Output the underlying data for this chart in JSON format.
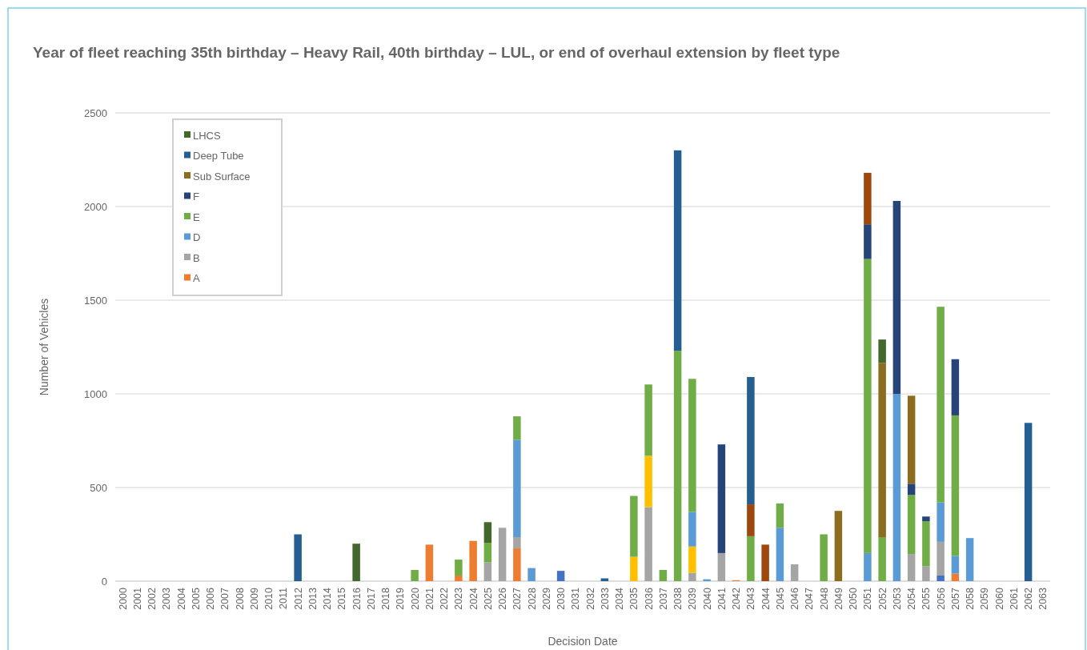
{
  "chart_data": {
    "type": "bar",
    "stacked": true,
    "title": "Year of fleet reaching 35th birthday – Heavy Rail, 40th birthday – LUL, or end of overhaul extension by fleet type",
    "xlabel": "Decision Date",
    "ylabel": "Number of Vehicles",
    "categories": [
      "2000",
      "2001",
      "2002",
      "2003",
      "2004",
      "2005",
      "2006",
      "2007",
      "2008",
      "2009",
      "2010",
      "2011",
      "2012",
      "2013",
      "2014",
      "2015",
      "2016",
      "2017",
      "2018",
      "2019",
      "2020",
      "2021",
      "2022",
      "2023",
      "2024",
      "2025",
      "2026",
      "2027",
      "2028",
      "2029",
      "2030",
      "2031",
      "2032",
      "2033",
      "2034",
      "2035",
      "2036",
      "2037",
      "2038",
      "2039",
      "2040",
      "2041",
      "2042",
      "2043",
      "2044",
      "2045",
      "2046",
      "2047",
      "2048",
      "2049",
      "2050",
      "2051",
      "2052",
      "2053",
      "2054",
      "2055",
      "2056",
      "2057",
      "2058",
      "2059",
      "2060",
      "2061",
      "2062",
      "2063"
    ],
    "ylim": [
      0,
      2500
    ],
    "yticks": [
      0,
      500,
      1000,
      1500,
      2000,
      2500
    ],
    "grid": "y",
    "legend": "top left",
    "series": [
      {
        "color": "#4472c4",
        "values": [
          null,
          null,
          null,
          null,
          null,
          null,
          null,
          null,
          null,
          null,
          null,
          null,
          null,
          null,
          null,
          null,
          null,
          null,
          null,
          null,
          null,
          null,
          null,
          null,
          null,
          null,
          null,
          null,
          null,
          null,
          55,
          null,
          null,
          null,
          null,
          null,
          null,
          null,
          null,
          null,
          null,
          null,
          null,
          null,
          null,
          null,
          null,
          null,
          null,
          null,
          null,
          null,
          null,
          null,
          null,
          null,
          30,
          null,
          null,
          null,
          null,
          null,
          null,
          null
        ]
      },
      {
        "name": "A",
        "color": "#ed7d31",
        "values": [
          null,
          null,
          null,
          null,
          null,
          null,
          null,
          null,
          null,
          null,
          null,
          null,
          null,
          null,
          null,
          null,
          null,
          null,
          null,
          null,
          null,
          195,
          null,
          30,
          215,
          null,
          null,
          175,
          null,
          null,
          null,
          null,
          null,
          null,
          null,
          null,
          null,
          null,
          null,
          null,
          null,
          null,
          5,
          null,
          null,
          null,
          null,
          null,
          null,
          null,
          null,
          null,
          null,
          null,
          null,
          null,
          null,
          40,
          null,
          null,
          null,
          null,
          null,
          null
        ]
      },
      {
        "name": "B",
        "color": "#a5a5a5",
        "values": [
          null,
          null,
          null,
          null,
          null,
          null,
          null,
          null,
          null,
          null,
          null,
          null,
          null,
          null,
          null,
          null,
          null,
          null,
          null,
          null,
          null,
          null,
          null,
          null,
          null,
          100,
          285,
          60,
          null,
          null,
          null,
          null,
          null,
          null,
          null,
          null,
          395,
          null,
          null,
          45,
          null,
          150,
          null,
          null,
          null,
          null,
          90,
          null,
          null,
          null,
          null,
          null,
          null,
          null,
          145,
          80,
          180,
          null,
          null,
          null,
          null,
          null,
          null,
          null
        ]
      },
      {
        "color": "#ffc000",
        "values": [
          null,
          null,
          null,
          null,
          null,
          null,
          null,
          null,
          null,
          null,
          null,
          null,
          null,
          null,
          null,
          null,
          null,
          null,
          null,
          null,
          null,
          null,
          null,
          null,
          null,
          null,
          null,
          null,
          null,
          null,
          null,
          null,
          null,
          null,
          null,
          130,
          275,
          null,
          null,
          140,
          null,
          null,
          null,
          null,
          null,
          null,
          null,
          null,
          null,
          null,
          null,
          null,
          null,
          null,
          null,
          null,
          null,
          null,
          null,
          null,
          null,
          null,
          null,
          null
        ]
      },
      {
        "name": "D",
        "color": "#5b9bd5",
        "values": [
          null,
          null,
          null,
          null,
          null,
          null,
          null,
          null,
          null,
          null,
          null,
          null,
          null,
          null,
          null,
          null,
          null,
          null,
          null,
          null,
          null,
          null,
          null,
          null,
          null,
          null,
          null,
          520,
          70,
          null,
          null,
          null,
          null,
          null,
          null,
          null,
          null,
          null,
          null,
          185,
          10,
          null,
          null,
          null,
          null,
          285,
          null,
          null,
          null,
          null,
          null,
          150,
          null,
          1000,
          null,
          null,
          210,
          95,
          230,
          null,
          null,
          null,
          null,
          null
        ]
      },
      {
        "name": "E",
        "color": "#70ad47",
        "values": [
          null,
          null,
          null,
          null,
          null,
          null,
          null,
          null,
          null,
          null,
          null,
          null,
          null,
          null,
          null,
          null,
          null,
          null,
          null,
          null,
          60,
          null,
          null,
          85,
          null,
          105,
          null,
          125,
          null,
          null,
          null,
          null,
          null,
          null,
          null,
          325,
          380,
          60,
          1230,
          710,
          null,
          null,
          null,
          240,
          null,
          130,
          null,
          null,
          250,
          null,
          null,
          1570,
          235,
          null,
          315,
          240,
          1045,
          750,
          null,
          null,
          null,
          null,
          null,
          null
        ]
      },
      {
        "name": "F",
        "color": "#264478",
        "values": [
          null,
          null,
          null,
          null,
          null,
          null,
          null,
          null,
          null,
          null,
          null,
          null,
          null,
          null,
          null,
          null,
          null,
          null,
          null,
          null,
          null,
          null,
          null,
          null,
          null,
          null,
          null,
          null,
          null,
          null,
          null,
          null,
          null,
          null,
          null,
          null,
          null,
          null,
          null,
          null,
          null,
          580,
          null,
          null,
          null,
          null,
          null,
          null,
          null,
          null,
          null,
          185,
          null,
          1030,
          60,
          25,
          null,
          300,
          null,
          null,
          null,
          null,
          null,
          null
        ]
      },
      {
        "color": "#9e480e",
        "values": [
          null,
          null,
          null,
          null,
          null,
          null,
          null,
          null,
          null,
          null,
          null,
          null,
          null,
          null,
          null,
          null,
          null,
          null,
          null,
          null,
          null,
          null,
          null,
          null,
          null,
          null,
          null,
          null,
          null,
          null,
          null,
          null,
          null,
          null,
          null,
          null,
          null,
          null,
          null,
          null,
          null,
          null,
          null,
          170,
          195,
          null,
          null,
          null,
          null,
          null,
          null,
          275,
          null,
          null,
          null,
          null,
          null,
          null,
          null,
          null,
          null,
          null,
          null,
          null
        ]
      },
      {
        "name": "Sub Surface",
        "color": "#8c6d1f",
        "values": [
          null,
          null,
          null,
          null,
          null,
          null,
          null,
          null,
          null,
          null,
          null,
          null,
          null,
          null,
          null,
          null,
          null,
          null,
          null,
          null,
          null,
          null,
          null,
          null,
          null,
          null,
          null,
          null,
          null,
          null,
          null,
          null,
          null,
          null,
          null,
          null,
          null,
          null,
          null,
          null,
          null,
          null,
          null,
          null,
          null,
          null,
          null,
          null,
          null,
          375,
          null,
          null,
          930,
          null,
          470,
          null,
          null,
          null,
          null,
          null,
          null,
          null,
          null,
          null
        ]
      },
      {
        "name": "Deep Tube",
        "color": "#255e91",
        "values": [
          null,
          null,
          null,
          null,
          null,
          null,
          null,
          null,
          null,
          null,
          null,
          null,
          250,
          null,
          null,
          null,
          null,
          null,
          null,
          null,
          null,
          null,
          null,
          null,
          null,
          null,
          null,
          null,
          null,
          null,
          null,
          null,
          null,
          15,
          null,
          null,
          null,
          null,
          1070,
          null,
          null,
          null,
          null,
          680,
          null,
          null,
          null,
          null,
          null,
          null,
          null,
          null,
          null,
          null,
          null,
          null,
          null,
          null,
          null,
          null,
          null,
          null,
          845,
          null
        ]
      },
      {
        "name": "LHCS",
        "color": "#43682b",
        "values": [
          null,
          null,
          null,
          null,
          null,
          null,
          null,
          null,
          null,
          null,
          null,
          null,
          null,
          null,
          null,
          null,
          200,
          null,
          null,
          null,
          null,
          null,
          null,
          null,
          null,
          110,
          null,
          null,
          null,
          null,
          null,
          null,
          null,
          null,
          null,
          null,
          null,
          null,
          null,
          null,
          null,
          null,
          null,
          null,
          null,
          null,
          null,
          null,
          null,
          null,
          null,
          null,
          125,
          null,
          null,
          null,
          null,
          null,
          null,
          null,
          null,
          null,
          null,
          null
        ]
      }
    ]
  }
}
